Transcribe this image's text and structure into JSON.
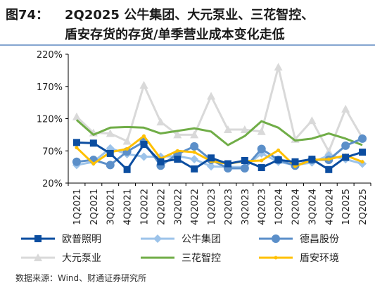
{
  "header": {
    "fig_label": "图74：",
    "title_line1": "2Q2025 公牛集团、大元泵业、三花智控、",
    "title_line2": "盾安存货的存货/单季营业成本变化走低"
  },
  "footer": {
    "source": "数据来源：Wind、财通证券研究所"
  },
  "chart_data": {
    "type": "line",
    "title": "",
    "xlabel": "",
    "ylabel": "",
    "ylim": [
      20,
      220
    ],
    "yticks": [
      20,
      70,
      120,
      170,
      220
    ],
    "ytick_labels": [
      "20%",
      "70%",
      "120%",
      "170%",
      "220%"
    ],
    "grid": false,
    "legend_position": "bottom",
    "categories": [
      "1Q2021",
      "2Q2021",
      "3Q2021",
      "4Q2021",
      "1Q2022",
      "2Q2022",
      "3Q2022",
      "4Q2022",
      "1Q2023",
      "2Q2023",
      "3Q2023",
      "4Q2023",
      "1Q2024",
      "2Q2024",
      "3Q2024",
      "4Q2024",
      "1Q2025",
      "2Q2025"
    ],
    "series": [
      {
        "name": "欧普照明",
        "color": "#0b4da0",
        "marker": "square",
        "values": [
          83,
          82,
          66,
          41,
          80,
          53,
          57,
          42,
          59,
          50,
          55,
          44,
          56,
          53,
          57,
          41,
          60,
          68
        ]
      },
      {
        "name": "公牛集团",
        "color": "#9cc3ea",
        "marker": "diamond",
        "values": [
          48,
          53,
          74,
          65,
          61,
          61,
          62,
          57,
          46,
          45,
          45,
          66,
          53,
          48,
          52,
          63,
          57,
          50
        ]
      },
      {
        "name": "德昌股份",
        "color": "#5b8fc9",
        "marker": "circle",
        "values": [
          53,
          56,
          48,
          69,
          84,
          47,
          65,
          77,
          56,
          43,
          43,
          73,
          56,
          47,
          56,
          56,
          78,
          89
        ]
      },
      {
        "name": "大元泵业",
        "color": "#d9d9d9",
        "marker": "triangle",
        "values": [
          123,
          98,
          97,
          85,
          172,
          115,
          95,
          95,
          155,
          103,
          103,
          100,
          200,
          88,
          117,
          69,
          135,
          90
        ]
      },
      {
        "name": "三花智控",
        "color": "#70ad47",
        "marker": "none",
        "values": [
          118,
          95,
          106,
          107,
          106,
          97,
          101,
          105,
          100,
          79,
          93,
          116,
          106,
          86,
          89,
          97,
          89,
          79
        ]
      },
      {
        "name": "盾安环境",
        "color": "#ffc000",
        "marker": "dot",
        "values": [
          75,
          50,
          68,
          73,
          93,
          58,
          70,
          68,
          54,
          50,
          54,
          55,
          71,
          46,
          56,
          57,
          63,
          53
        ]
      }
    ]
  }
}
